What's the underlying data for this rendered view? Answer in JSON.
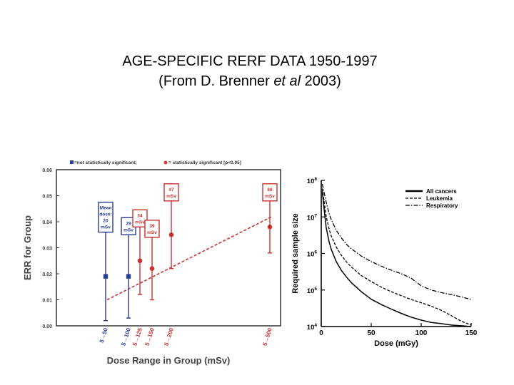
{
  "slide": {
    "title_line1": "AGE-SPECIFIC RERF DATA 1950-1997",
    "title_line2_pre": "(From D. Brenner ",
    "title_line2_em": "et al",
    "title_line2_post": " 2003)"
  },
  "colors": {
    "blue": "#2a3c9a",
    "red": "#c8322f",
    "legend_red": "#d04040"
  },
  "chart_data": [
    {
      "type": "scatter",
      "title": "",
      "xlabel": "Dose Range in Group (mSv)",
      "ylabel": "ERR for Group",
      "ylim": [
        0,
        0.06
      ],
      "yticks": [
        "0.00",
        "0.01",
        "0.02",
        "0.03",
        "0.04",
        "0.05",
        "0.06"
      ],
      "legend": [
        "=not statistically significant;",
        "= statistically significant [p<0.05]"
      ],
      "legend_position": "top",
      "grid": false,
      "points": [
        {
          "category": "5→50",
          "y": 0.019,
          "lo": 0.002,
          "hi": 0.036,
          "significant": false,
          "box": [
            "Mean",
            "dose:",
            "20",
            "mSv"
          ]
        },
        {
          "category": "5→100",
          "y": 0.019,
          "lo": 0.003,
          "hi": 0.035,
          "significant": false,
          "box": [
            "29",
            "mSv"
          ]
        },
        {
          "category": "5→125",
          "y": 0.025,
          "lo": 0.012,
          "hi": 0.038,
          "significant": true,
          "box": [
            "34",
            "mSv"
          ]
        },
        {
          "category": "5→150",
          "y": 0.022,
          "lo": 0.01,
          "hi": 0.034,
          "significant": true,
          "box": [
            "39",
            "mSv"
          ]
        },
        {
          "category": "5→200",
          "y": 0.035,
          "lo": 0.022,
          "hi": 0.048,
          "significant": true,
          "box": [
            "47",
            "mSv"
          ]
        },
        {
          "category": "5→500",
          "y": 0.038,
          "lo": 0.028,
          "hi": 0.048,
          "significant": true,
          "box": [
            "86",
            "mSv"
          ]
        }
      ],
      "trend_line": {
        "x_mSv": [
          20,
          86
        ],
        "y": [
          0.01,
          0.042
        ]
      }
    },
    {
      "type": "line",
      "title": "",
      "xlabel": "Dose (mGy)",
      "ylabel": "Required sample size",
      "xlim": [
        0,
        150
      ],
      "xticks": [
        "0",
        "50",
        "100",
        "150"
      ],
      "ylim": [
        10000,
        100000000
      ],
      "yscale": "log",
      "ytick_labels": [
        {
          "base": "10",
          "exp": "4"
        },
        {
          "base": "10",
          "exp": "5"
        },
        {
          "base": "10",
          "exp": "6"
        },
        {
          "base": "10",
          "exp": "7"
        },
        {
          "base": "10",
          "exp": "8"
        }
      ],
      "legend_position": "top-right",
      "series": [
        {
          "name": "All cancers",
          "style": "solid",
          "x": [
            1,
            3,
            5,
            8,
            10,
            15,
            20,
            25,
            30,
            40,
            50,
            60,
            70,
            80,
            90,
            100,
            110,
            120,
            130,
            140,
            150
          ],
          "y": [
            50000000,
            15000000,
            5000000,
            2000000,
            1300000,
            600000,
            350000,
            230000,
            160000,
            90000,
            56000,
            40000,
            30000,
            23000,
            18000,
            15000,
            13000,
            12000,
            11000,
            10500,
            10000
          ]
        },
        {
          "name": "Leukemia",
          "style": "dashed",
          "x": [
            1,
            3,
            5,
            8,
            10,
            15,
            20,
            25,
            30,
            40,
            50,
            60,
            70,
            80,
            90,
            100,
            110,
            120,
            130,
            140,
            150
          ],
          "y": [
            60000000,
            25000000,
            10000000,
            4500000,
            3000000,
            1500000,
            900000,
            600000,
            430000,
            250000,
            170000,
            120000,
            90000,
            70000,
            55000,
            45000,
            36000,
            28000,
            20000,
            14000,
            11000
          ]
        },
        {
          "name": "Respiratory",
          "style": "dash-dot",
          "x": [
            1,
            3,
            5,
            8,
            10,
            15,
            20,
            25,
            30,
            40,
            50,
            60,
            70,
            80,
            90,
            100,
            110,
            120,
            130,
            140,
            150
          ],
          "y": [
            80000000,
            45000000,
            25000000,
            12000000,
            8500000,
            4300000,
            2700000,
            1800000,
            1350000,
            850000,
            600000,
            450000,
            350000,
            280000,
            210000,
            130000,
            100000,
            85000,
            75000,
            65000,
            55000
          ]
        }
      ]
    }
  ]
}
